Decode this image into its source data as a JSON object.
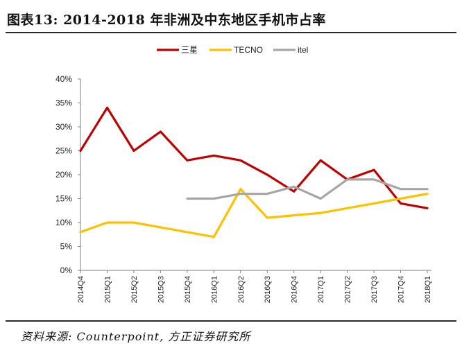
{
  "header": {
    "title": "图表13:  2014-2018 年非洲及中东地区手机市占率"
  },
  "footer": {
    "source": "资料来源: Counterpoint, 方正证券研究所"
  },
  "colors": {
    "samsung": "#c00000",
    "tecno": "#ffc000",
    "itel": "#a6a6a6"
  },
  "chart_data": {
    "type": "line",
    "title": "",
    "xlabel": "",
    "ylabel": "",
    "ylim": [
      0,
      40
    ],
    "yticks": [
      "0%",
      "5%",
      "10%",
      "15%",
      "20%",
      "25%",
      "30%",
      "35%",
      "40%"
    ],
    "categories": [
      "2014Q4",
      "2015Q1",
      "2015Q2",
      "2015Q3",
      "2015Q4",
      "2016Q1",
      "2016Q2",
      "2016Q3",
      "2016Q4",
      "2017Q1",
      "2017Q2",
      "2017Q3",
      "2017Q4",
      "2018Q1"
    ],
    "legend_position": "top",
    "series": [
      {
        "name": "三星",
        "color": "#c00000",
        "values": [
          25,
          34,
          25,
          29,
          23,
          24,
          23,
          20,
          16.5,
          23,
          19,
          21,
          14,
          13
        ]
      },
      {
        "name": "TECNO",
        "color": "#ffc000",
        "values": [
          8,
          10,
          10,
          9,
          8,
          7,
          17,
          11,
          11.5,
          12,
          13,
          14,
          15,
          16
        ]
      },
      {
        "name": "itel",
        "color": "#a6a6a6",
        "values": [
          null,
          null,
          null,
          null,
          15,
          15,
          16,
          16,
          17.5,
          15,
          19,
          19,
          17,
          17
        ]
      }
    ]
  }
}
